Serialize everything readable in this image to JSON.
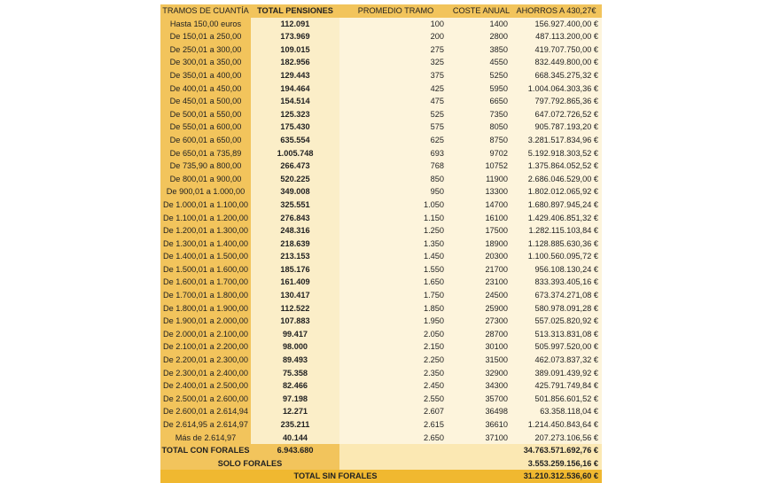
{
  "headers": {
    "tramos": "TRAMOS DE CUANTÍA",
    "total_pensiones": "TOTAL PENSIONES",
    "promedio": "PROMEDIO TRAMO",
    "coste": "COSTE ANUAL",
    "ahorros": "AHORROS A 430,27€"
  },
  "rows": [
    [
      "Hasta 150,00 euros",
      "112.091",
      "100",
      "1400",
      "156.927.400,00 €"
    ],
    [
      "De 150,01 a 250,00",
      "173.969",
      "200",
      "2800",
      "487.113.200,00 €"
    ],
    [
      "De 250,01 a 300,00",
      "109.015",
      "275",
      "3850",
      "419.707.750,00 €"
    ],
    [
      "De 300,01 a 350,00",
      "182.956",
      "325",
      "4550",
      "832.449.800,00 €"
    ],
    [
      "De 350,01 a 400,00",
      "129.443",
      "375",
      "5250",
      "668.345.275,32 €"
    ],
    [
      "De 400,01 a 450,00",
      "194.464",
      "425",
      "5950",
      "1.004.064.303,36 €"
    ],
    [
      "De 450,01 a 500,00",
      "154.514",
      "475",
      "6650",
      "797.792.865,36 €"
    ],
    [
      "De 500,01 a 550,00",
      "125.323",
      "525",
      "7350",
      "647.072.726,52 €"
    ],
    [
      "De 550,01 a 600,00",
      "175.430",
      "575",
      "8050",
      "905.787.193,20 €"
    ],
    [
      "De 600,01 a 650,00",
      "635.554",
      "625",
      "8750",
      "3.281.517.834,96 €"
    ],
    [
      "De 650,01 a 735,89",
      "1.005.748",
      "693",
      "9702",
      "5.192.918.303,52 €"
    ],
    [
      "De 735,90 a 800,00",
      "266.473",
      "768",
      "10752",
      "1.375.864.052,52 €"
    ],
    [
      "De 800,01 a 900,00",
      "520.225",
      "850",
      "11900",
      "2.686.046.529,00 €"
    ],
    [
      "De 900,01 a 1.000,00",
      "349.008",
      "950",
      "13300",
      "1.802.012.065,92 €"
    ],
    [
      "De 1.000,01 a 1.100,00",
      "325.551",
      "1.050",
      "14700",
      "1.680.897.945,24 €"
    ],
    [
      "De 1.100,01 a 1.200,00",
      "276.843",
      "1.150",
      "16100",
      "1.429.406.851,32 €"
    ],
    [
      "De 1.200,01 a 1.300,00",
      "248.316",
      "1.250",
      "17500",
      "1.282.115.103,84 €"
    ],
    [
      "De 1.300,01 a 1.400,00",
      "218.639",
      "1.350",
      "18900",
      "1.128.885.630,36 €"
    ],
    [
      "De 1.400,01 a 1.500,00",
      "213.153",
      "1.450",
      "20300",
      "1.100.560.095,72 €"
    ],
    [
      "De 1.500,01 a 1.600,00",
      "185.176",
      "1.550",
      "21700",
      "956.108.130,24 €"
    ],
    [
      "De 1.600,01 a 1.700,00",
      "161.409",
      "1.650",
      "23100",
      "833.393.405,16 €"
    ],
    [
      "De 1.700,01 a 1.800,00",
      "130.417",
      "1.750",
      "24500",
      "673.374.271,08 €"
    ],
    [
      "De 1.800,01 a 1.900,00",
      "112.522",
      "1.850",
      "25900",
      "580.978.091,28 €"
    ],
    [
      "De 1.900,01 a 2.000,00",
      "107.883",
      "1.950",
      "27300",
      "557.025.820,92 €"
    ],
    [
      "De 2.000,01 a 2.100,00",
      "99.417",
      "2.050",
      "28700",
      "513.313.831,08 €"
    ],
    [
      "De 2.100,01 a 2.200,00",
      "98.000",
      "2.150",
      "30100",
      "505.997.520,00 €"
    ],
    [
      "De 2.200,01 a 2.300,00",
      "89.493",
      "2.250",
      "31500",
      "462.073.837,32 €"
    ],
    [
      "De 2.300,01 a 2.400,00",
      "75.358",
      "2.350",
      "32900",
      "389.091.439,92 €"
    ],
    [
      "De 2.400,01 a 2.500,00",
      "82.466",
      "2.450",
      "34300",
      "425.791.749,84 €"
    ],
    [
      "De 2.500,01 a 2.600,00",
      "97.198",
      "2.550",
      "35700",
      "501.856.601,52 €"
    ],
    [
      "De 2.600,01 a 2.614,94",
      "12.271",
      "2.607",
      "36498",
      "63.358.118,04 €"
    ],
    [
      "De 2.614,95 a 2.614,97",
      "235.211",
      "2.615",
      "36610",
      "1.214.450.843,64 €"
    ],
    [
      "Más de 2.614,97",
      "40.144",
      "2.650",
      "37100",
      "207.273.106,56 €"
    ]
  ],
  "summary": {
    "con_forales_label": "TOTAL CON FORALES",
    "con_forales_pensiones": "6.943.680",
    "con_forales_ahorros": "34.763.571.692,76 €",
    "solo_forales_label": "SOLO FORALES",
    "solo_forales_ahorros": "3.553.259.156,16 €",
    "sin_forales_label": "TOTAL SIN FORALES",
    "sin_forales_ahorros": "31.210.312.536,60 €"
  },
  "colors": {
    "header_gold": "#f2c45c",
    "light_cream": "#fdf4dc",
    "pensiones_cream": "#fbeec8",
    "total_gold": "#f0b830"
  }
}
